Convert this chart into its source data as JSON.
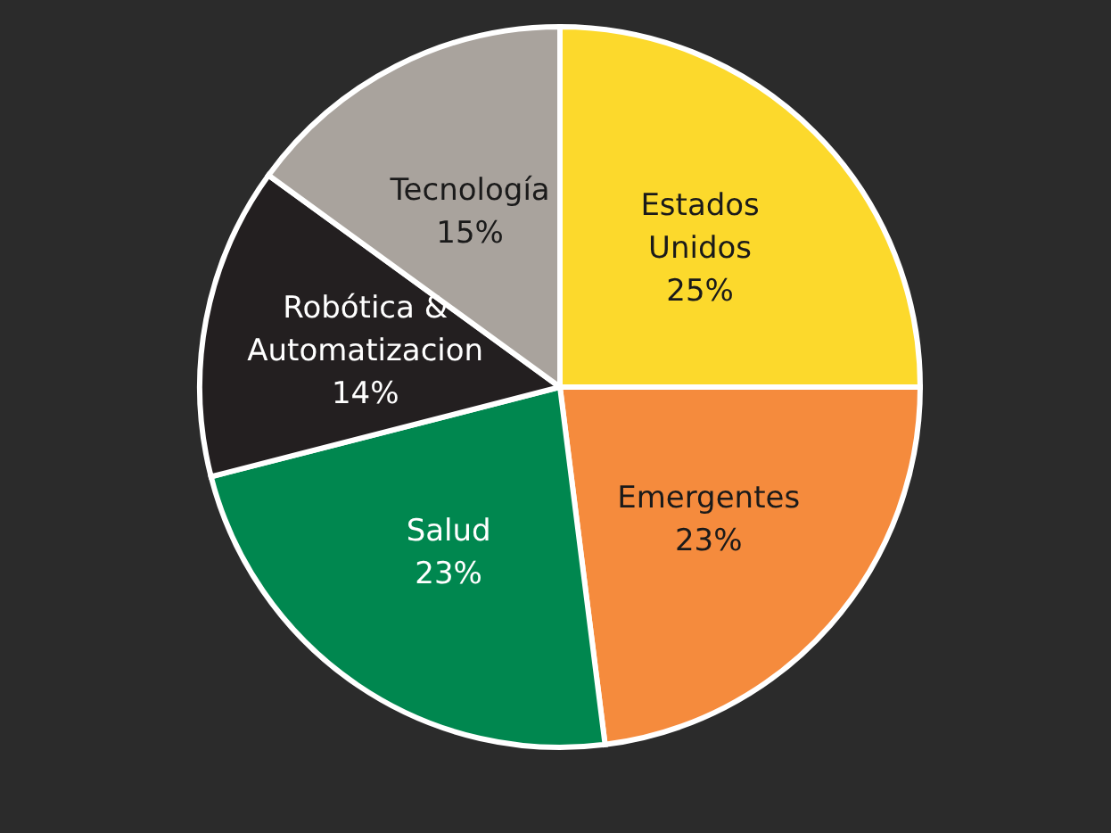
{
  "chart_data": {
    "type": "pie",
    "categories": [
      "Estados Unidos",
      "Emergentes",
      "Salud",
      "Robótica & Automatizacion",
      "Tecnología"
    ],
    "values": [
      25,
      23,
      23,
      14,
      15
    ],
    "colors": [
      "#fcd92c",
      "#f58b3d",
      "#00874f",
      "#231f20",
      "#a9a39d"
    ],
    "value_labels": [
      "25%",
      "23%",
      "23%",
      "14%",
      "15%"
    ]
  }
}
